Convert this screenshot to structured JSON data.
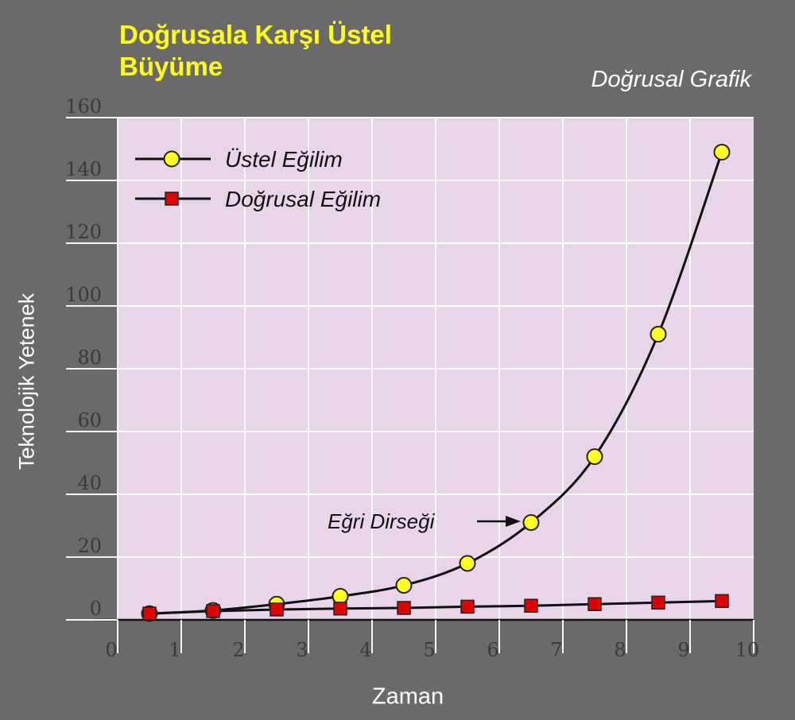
{
  "title_line1": "Doğrusala Karşı Üstel",
  "title_line2": "Büyüme",
  "subtitle": "Doğrusal Grafik",
  "colors": {
    "background": "#6a6a6a",
    "plot_bg": "#e9d5e9",
    "grid": "#ffffff",
    "title": "#ffff1a",
    "exp_marker": "#ffff22",
    "lin_marker": "#e00000"
  },
  "chart_data": {
    "type": "line",
    "title": "Doğrusala Karşı Üstel Büyüme",
    "subtitle": "Doğrusal Grafik",
    "xlabel": "Zaman",
    "ylabel": "Teknolojik Yetenek",
    "xlim": [
      0,
      10
    ],
    "ylim": [
      0,
      160
    ],
    "x_ticks": [
      "0",
      "1",
      "2",
      "3",
      "4",
      "5",
      "6",
      "7",
      "8",
      "9",
      "10"
    ],
    "y_ticks": [
      "0",
      "20",
      "40",
      "60",
      "80",
      "100",
      "120",
      "140",
      "160"
    ],
    "grid": true,
    "legend_position": "top-left",
    "series": [
      {
        "name": "Üstel Eğilim",
        "marker": "circle",
        "x": [
          0.5,
          1.5,
          2.5,
          3.5,
          4.5,
          5.5,
          6.5,
          7.5,
          8.5,
          9.5
        ],
        "y": [
          2,
          3,
          5,
          7.5,
          11,
          18,
          31,
          52,
          91,
          149
        ]
      },
      {
        "name": "Doğrusal Eğilim",
        "marker": "square",
        "x": [
          0.5,
          1.5,
          2.5,
          3.5,
          4.5,
          5.5,
          6.5,
          7.5,
          8.5,
          9.5
        ],
        "y": [
          2,
          2.8,
          3.3,
          3.6,
          3.8,
          4.2,
          4.5,
          5,
          5.5,
          6
        ]
      }
    ],
    "annotations": [
      {
        "text": "Eğri Dirseği",
        "x": 6.5,
        "y": 31
      }
    ]
  }
}
